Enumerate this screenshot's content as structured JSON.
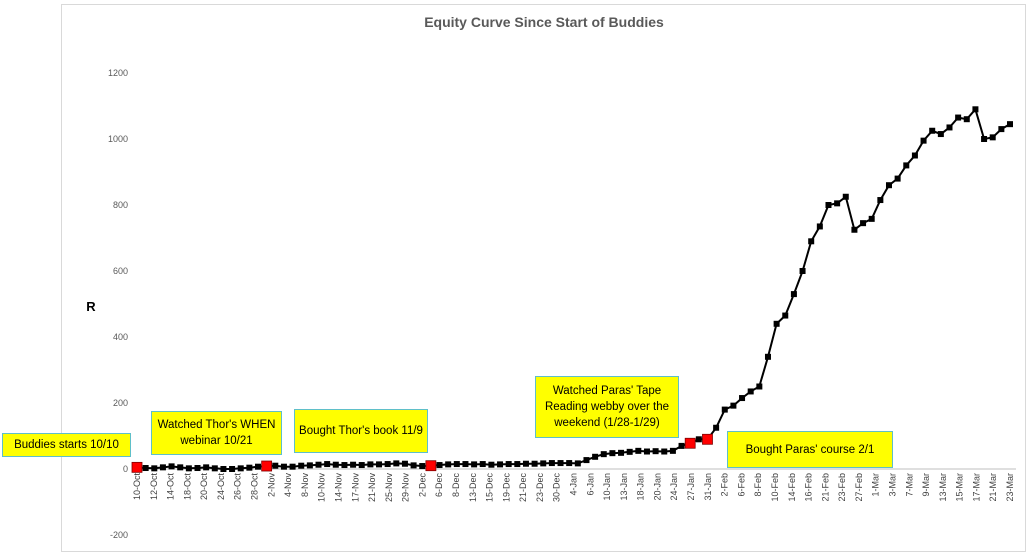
{
  "chart_data": {
    "type": "line",
    "title": "Equity Curve Since Start of Buddies",
    "xlabel": "",
    "ylabel": "R",
    "ylim": [
      -200,
      1200
    ],
    "yticks": [
      -200,
      0,
      200,
      400,
      600,
      800,
      1000,
      1200
    ],
    "grid": false,
    "legend": "none",
    "colors": {
      "line": "#000000",
      "marker": "#000000",
      "highlight": "#ff0000",
      "callout_fill": "#ffff00",
      "callout_border": "#5fbfc9"
    },
    "x_tick_labels": [
      "10-Oct",
      "12-Oct",
      "14-Oct",
      "18-Oct",
      "20-Oct",
      "24-Oct",
      "26-Oct",
      "28-Oct",
      "2-Nov",
      "4-Nov",
      "8-Nov",
      "10-Nov",
      "14-Nov",
      "17-Nov",
      "21-Nov",
      "25-Nov",
      "29-Nov",
      "2-Dec",
      "6-Dec",
      "8-Dec",
      "13-Dec",
      "15-Dec",
      "19-Dec",
      "21-Dec",
      "23-Dec",
      "30-Dec",
      "4-Jan",
      "6-Jan",
      "10-Jan",
      "13-Jan",
      "18-Jan",
      "20-Jan",
      "24-Jan",
      "27-Jan",
      "31-Jan",
      "2-Feb",
      "6-Feb",
      "8-Feb",
      "10-Feb",
      "14-Feb",
      "16-Feb",
      "21-Feb",
      "23-Feb",
      "27-Feb",
      "1-Mar",
      "3-Mar",
      "7-Mar",
      "9-Mar",
      "13-Mar",
      "15-Mar",
      "17-Mar",
      "21-Mar",
      "23-Mar"
    ],
    "series": [
      {
        "values": [
          5,
          3,
          2,
          5,
          8,
          5,
          2,
          3,
          5,
          2,
          0,
          0,
          2,
          4,
          7,
          9,
          10,
          7,
          7,
          10,
          11,
          13,
          15,
          13,
          12,
          13,
          12,
          14,
          14,
          15,
          17,
          16,
          11,
          9,
          10,
          12,
          14,
          15,
          15,
          14,
          15,
          13,
          14,
          15,
          15,
          16,
          16,
          17,
          18,
          18,
          18,
          17,
          27,
          37,
          45,
          48,
          49,
          52,
          55,
          53,
          54,
          53,
          55,
          70,
          78,
          90,
          90,
          125,
          180,
          192,
          215,
          235,
          250,
          340,
          440,
          465,
          530,
          600,
          690,
          735,
          800,
          805,
          825,
          725,
          745,
          758,
          815,
          860,
          880,
          920,
          950,
          995,
          1025,
          1015,
          1035,
          1065,
          1060,
          1090,
          1000,
          1005,
          1030,
          1045
        ]
      }
    ],
    "highlight_points": [
      0,
      15,
      34,
      64,
      66
    ]
  },
  "annotations": [
    {
      "id": "buddies",
      "text": "Buddies starts 10/10"
    },
    {
      "id": "thor-webinar",
      "text": "Watched Thor's WHEN webinar 10/21"
    },
    {
      "id": "thor-book",
      "text": "Bought Thor's book 11/9"
    },
    {
      "id": "paras-tape",
      "text": "Watched Paras' Tape Reading webby over the weekend (1/28-1/29)"
    },
    {
      "id": "paras-course",
      "text": "Bought Paras' course 2/1"
    }
  ]
}
